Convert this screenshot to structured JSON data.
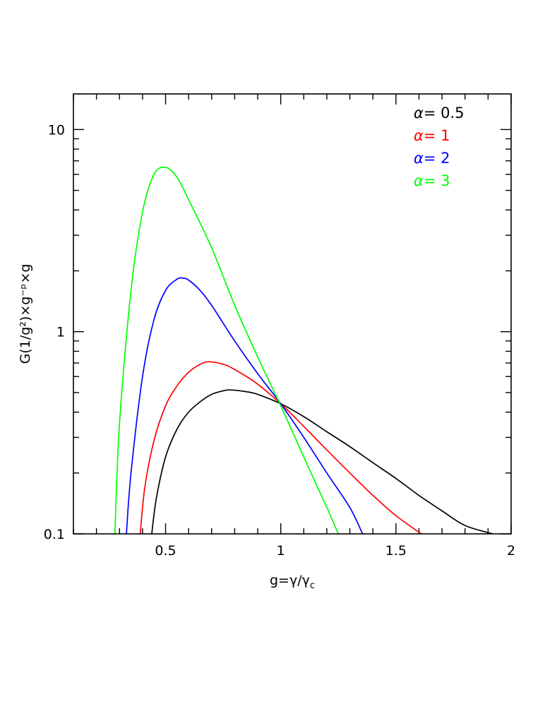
{
  "chart_data": {
    "type": "line",
    "xlabel": "g=γ/γ",
    "xlabel_sub": "c",
    "ylabel": "G(1/g²)×g⁻ᵖ×g",
    "xlim": [
      0.1,
      2.0
    ],
    "ylim": [
      0.1,
      15
    ],
    "yscale": "log",
    "x_ticks": [
      "0.5",
      "1",
      "1.5",
      "2"
    ],
    "y_ticks": [
      "0.1",
      "1",
      "10"
    ],
    "legend_position": "top-right",
    "legend_prefix": "α=",
    "series": [
      {
        "name": "0.5",
        "color": "#000000",
        "x": [
          0.44,
          0.46,
          0.5,
          0.55,
          0.6,
          0.65,
          0.7,
          0.75,
          0.78,
          0.85,
          0.9,
          1.0,
          1.1,
          1.2,
          1.3,
          1.4,
          1.5,
          1.6,
          1.7,
          1.8,
          1.92
        ],
        "y": [
          0.1,
          0.15,
          0.24,
          0.33,
          0.4,
          0.45,
          0.49,
          0.51,
          0.515,
          0.505,
          0.49,
          0.44,
          0.38,
          0.32,
          0.27,
          0.225,
          0.188,
          0.155,
          0.13,
          0.11,
          0.1
        ]
      },
      {
        "name": "1",
        "color": "#ff0000",
        "x": [
          0.39,
          0.41,
          0.45,
          0.5,
          0.55,
          0.6,
          0.65,
          0.69,
          0.75,
          0.8,
          0.9,
          1.0,
          1.1,
          1.2,
          1.3,
          1.4,
          1.5,
          1.61
        ],
        "y": [
          0.1,
          0.17,
          0.29,
          0.43,
          0.54,
          0.63,
          0.69,
          0.71,
          0.69,
          0.65,
          0.55,
          0.44,
          0.34,
          0.26,
          0.2,
          0.155,
          0.123,
          0.1
        ]
      },
      {
        "name": "2",
        "color": "#0000ff",
        "x": [
          0.33,
          0.35,
          0.4,
          0.45,
          0.5,
          0.55,
          0.575,
          0.6,
          0.65,
          0.7,
          0.8,
          0.9,
          1.0,
          1.1,
          1.2,
          1.3,
          1.355
        ],
        "y": [
          0.1,
          0.2,
          0.6,
          1.15,
          1.6,
          1.82,
          1.84,
          1.8,
          1.6,
          1.35,
          0.9,
          0.62,
          0.44,
          0.3,
          0.2,
          0.135,
          0.1
        ]
      },
      {
        "name": "3",
        "color": "#00ff00",
        "x": [
          0.28,
          0.3,
          0.35,
          0.4,
          0.45,
          0.5,
          0.55,
          0.6,
          0.7,
          0.8,
          0.9,
          1.0,
          1.1,
          1.2,
          1.25
        ],
        "y": [
          0.1,
          0.35,
          1.6,
          3.9,
          6.0,
          6.5,
          5.8,
          4.5,
          2.6,
          1.35,
          0.75,
          0.43,
          0.24,
          0.135,
          0.1
        ]
      }
    ]
  }
}
